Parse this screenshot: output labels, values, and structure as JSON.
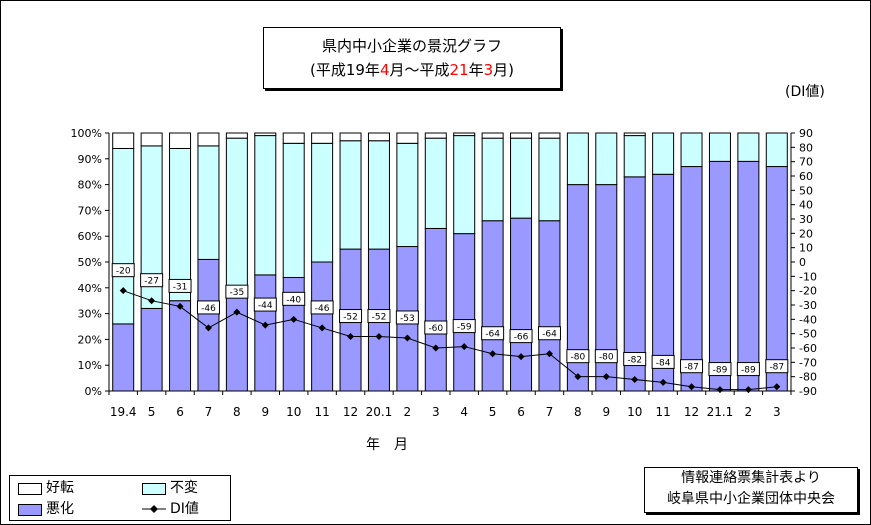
{
  "title": {
    "line1": "県内中小企業の景況グラフ",
    "line2_open": "(平成19年",
    "line2_m1": "4",
    "line2_mid": "月～平成",
    "line2_y2": "21",
    "line2_nen": "年",
    "line2_m2": "3",
    "line2_close": "月)"
  },
  "source": {
    "line1": "情報連絡票集計表より",
    "line2": "岐阜県中小企業団体中央会"
  },
  "legend": {
    "improve": "好転",
    "unchanged": "不変",
    "worsen": "悪化",
    "di": "DI値"
  },
  "colors": {
    "worsen": "#9999ff",
    "unchanged": "#ccffff",
    "improve": "#ffffff",
    "border": "#000000"
  },
  "chart_data": {
    "type": "bar",
    "stacked": true,
    "xlabel": "年　月",
    "ylabel_right": "(DI値)",
    "categories": [
      "19.4",
      "5",
      "6",
      "7",
      "8",
      "9",
      "10",
      "11",
      "12",
      "20.1",
      "2",
      "3",
      "4",
      "5",
      "6",
      "7",
      "8",
      "9",
      "10",
      "11",
      "12",
      "21.1",
      "2",
      "3"
    ],
    "ylim_left": [
      0,
      100
    ],
    "left_ticks": [
      "0%",
      "10%",
      "20%",
      "30%",
      "40%",
      "50%",
      "60%",
      "70%",
      "80%",
      "90%",
      "100%"
    ],
    "ylim_right": [
      -90,
      90
    ],
    "right_ticks": [
      "-90",
      "-80",
      "-70",
      "-60",
      "-50",
      "-40",
      "-30",
      "-20",
      "-10",
      "0",
      "10",
      "20",
      "30",
      "40",
      "50",
      "60",
      "70",
      "80",
      "90"
    ],
    "series": [
      {
        "name": "悪化",
        "values": [
          26,
          32,
          35,
          51,
          38,
          45,
          44,
          50,
          55,
          55,
          56,
          63,
          61,
          66,
          67,
          66,
          80,
          80,
          83,
          84,
          87,
          89,
          89,
          87
        ]
      },
      {
        "name": "不変",
        "values": [
          68,
          63,
          59,
          44,
          60,
          54,
          52,
          46,
          42,
          42,
          40,
          35,
          38,
          32,
          31,
          32,
          20,
          20,
          16,
          16,
          13,
          11,
          11,
          13
        ]
      },
      {
        "name": "好転",
        "values": [
          6,
          5,
          6,
          5,
          2,
          1,
          4,
          4,
          3,
          3,
          4,
          2,
          1,
          2,
          2,
          2,
          0,
          0,
          1,
          0,
          0,
          0,
          0,
          0
        ]
      }
    ],
    "di": {
      "name": "DI値",
      "values": [
        -20,
        -27,
        -31,
        -46,
        -35,
        -44,
        -40,
        -46,
        -52,
        -52,
        -53,
        -60,
        -59,
        -64,
        -66,
        -64,
        -80,
        -80,
        -82,
        -84,
        -87,
        -89,
        -89,
        -87
      ],
      "labels": [
        "-20",
        "-27",
        "-31",
        "-46",
        "-35",
        "-44",
        "-40",
        "-46",
        "-52",
        "-52",
        "-53",
        "-60",
        "-59",
        "-64",
        "-66",
        "-64",
        "-80",
        "-80",
        "-82",
        "-84",
        "-87",
        "-89",
        "-89",
        "-87"
      ]
    },
    "legend_position": "bottom-left",
    "grid": false
  }
}
